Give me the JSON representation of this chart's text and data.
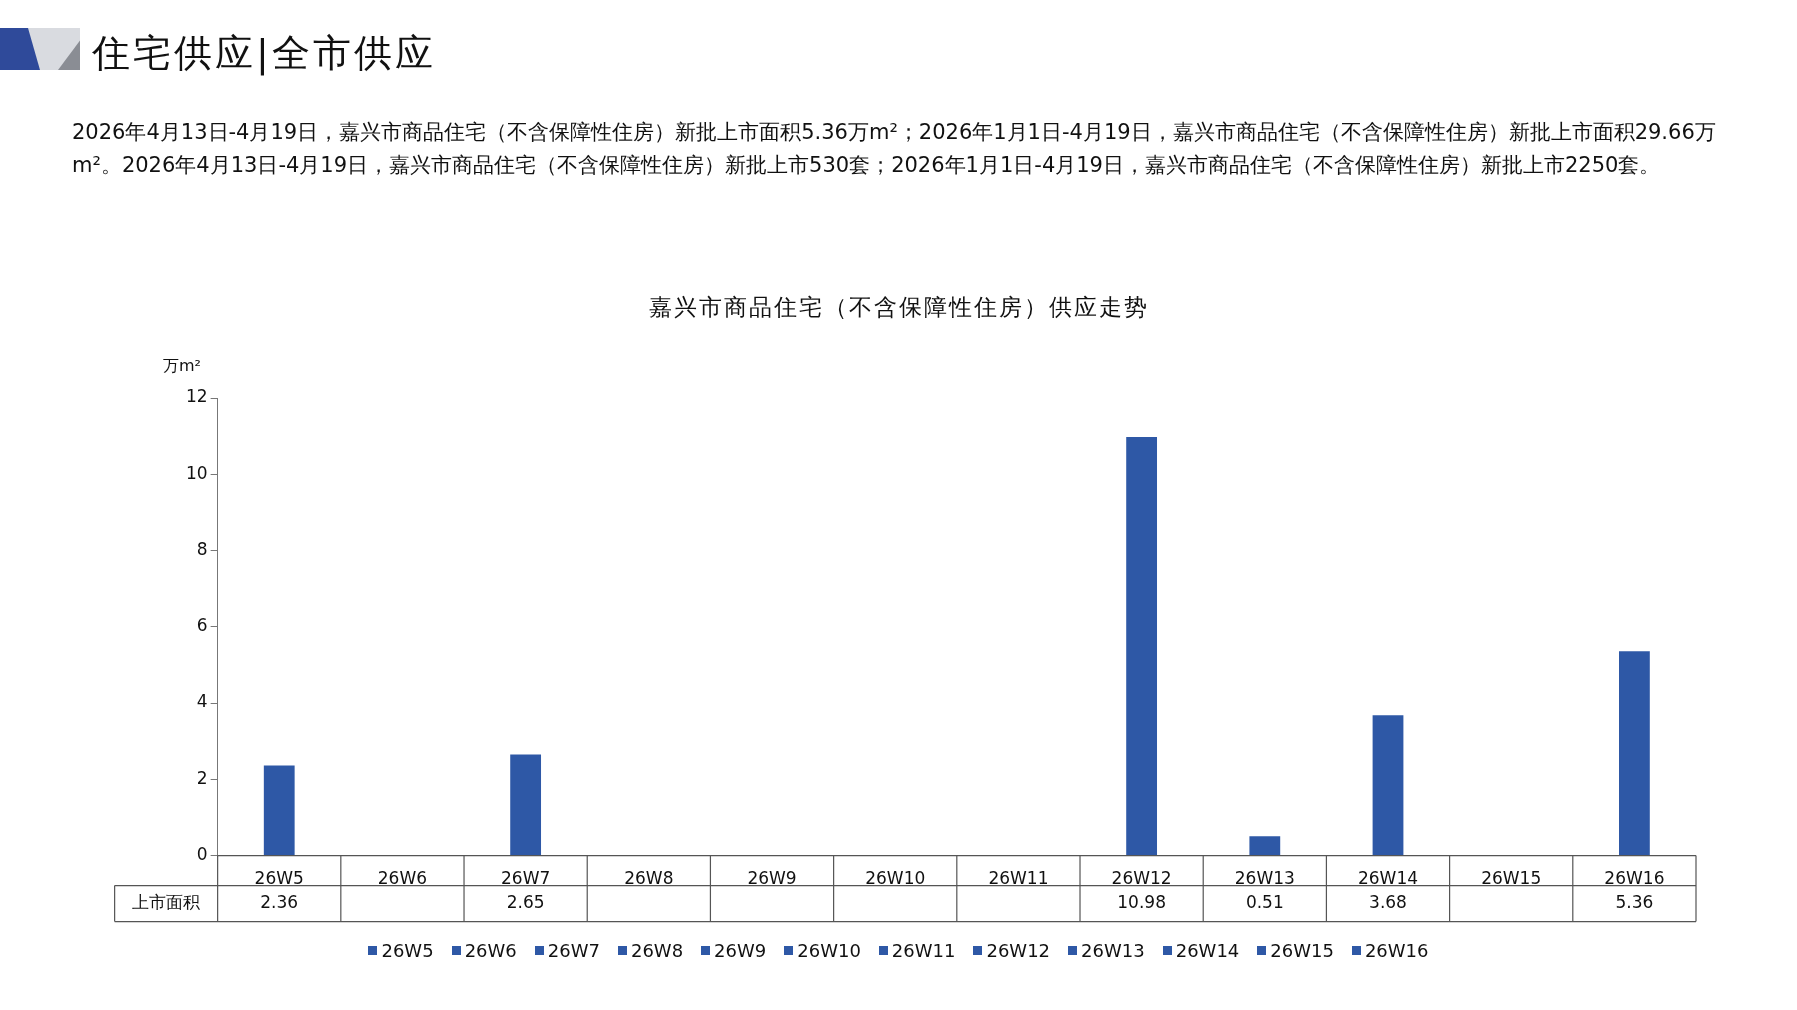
{
  "chart_data": {
    "type": "bar",
    "title": "嘉兴市商品住宅（不含保障性住房）供应走势",
    "annotations": [
      "住宅供应|全市供应",
      "2026年4月13日-4月19日，嘉兴市商品住宅（不含保障性住房）新批上市面积5.36万m²；2026年1月1日-4月19日，嘉兴市商品住宅（不含保障性住房）新批上市面积29.66万m²。2026年4月13日-4月19日，嘉兴市商品住宅（不含保障性住房）新批上市530套；2026年1月1日-4月19日，嘉兴市商品住宅（不含保障性住房）新批上市2250套。"
    ],
    "ylabel": "万m²",
    "categories": [
      "26W5",
      "26W6",
      "26W7",
      "26W8",
      "26W9",
      "26W10",
      "26W11",
      "26W12",
      "26W13",
      "26W14",
      "26W15",
      "26W16"
    ],
    "series": [
      {
        "name": "上市面积",
        "color": "#2e58a6",
        "values": [
          2.36,
          null,
          2.65,
          null,
          null,
          null,
          null,
          10.98,
          0.51,
          3.68,
          null,
          5.36
        ]
      }
    ],
    "ylim": [
      0,
      12
    ],
    "yticks": [
      0,
      2,
      4,
      6,
      8,
      10,
      12
    ],
    "data_labels": true,
    "legend": "bottom"
  }
}
